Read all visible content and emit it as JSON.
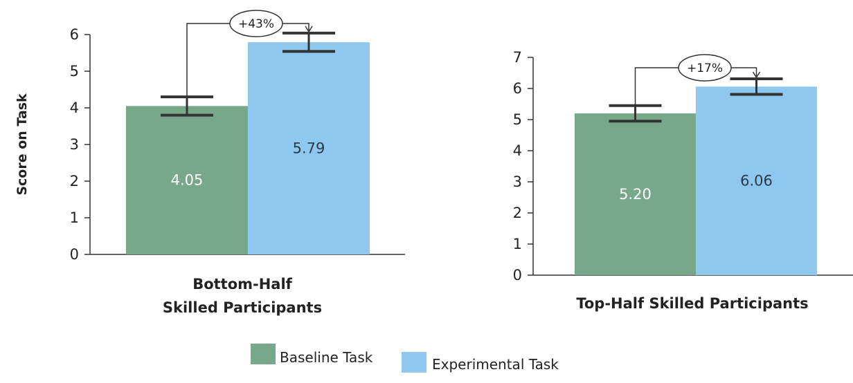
{
  "chart_data": [
    {
      "type": "bar",
      "categories": [
        "Bottom-Half Skilled Participants"
      ],
      "category_lines": [
        "Bottom-Half",
        "Skilled Participants"
      ],
      "ylabel": "Score on Task",
      "xlabel": "",
      "ylim": [
        0,
        6
      ],
      "yticks": [
        0,
        1,
        2,
        3,
        4,
        5,
        6
      ],
      "series": [
        {
          "name": "Baseline Task",
          "values": [
            4.05
          ],
          "labels": [
            "4.05"
          ],
          "error": [
            0.25
          ]
        },
        {
          "name": "Experimental Task",
          "values": [
            5.79
          ],
          "labels": [
            "5.79"
          ],
          "error": [
            0.25
          ]
        }
      ],
      "annotation": "+43%",
      "grid": false
    },
    {
      "type": "bar",
      "categories": [
        "Top-Half Skilled Participants"
      ],
      "category_lines": [
        "Top-Half Skilled Participants"
      ],
      "ylabel": "",
      "xlabel": "",
      "ylim": [
        0,
        7
      ],
      "yticks": [
        0,
        1,
        2,
        3,
        4,
        5,
        6,
        7
      ],
      "series": [
        {
          "name": "Baseline Task",
          "values": [
            5.2
          ],
          "labels": [
            "5.20"
          ],
          "error": [
            0.25
          ]
        },
        {
          "name": "Experimental Task",
          "values": [
            6.06
          ],
          "labels": [
            "6.06"
          ],
          "error": [
            0.25
          ]
        }
      ],
      "annotation": "+17%",
      "grid": false
    }
  ],
  "legend": {
    "placement": "bottom-center",
    "items": [
      {
        "label": "Baseline Task",
        "color": "#78a88a"
      },
      {
        "label": "Experimental Task",
        "color": "#8fc8ee"
      }
    ]
  },
  "colors": {
    "baseline": "#78a88a",
    "experimental": "#8fc8ee",
    "baseline_text": "#ffffff",
    "experimental_text": "#2b3a4a",
    "axis": "#333333"
  }
}
